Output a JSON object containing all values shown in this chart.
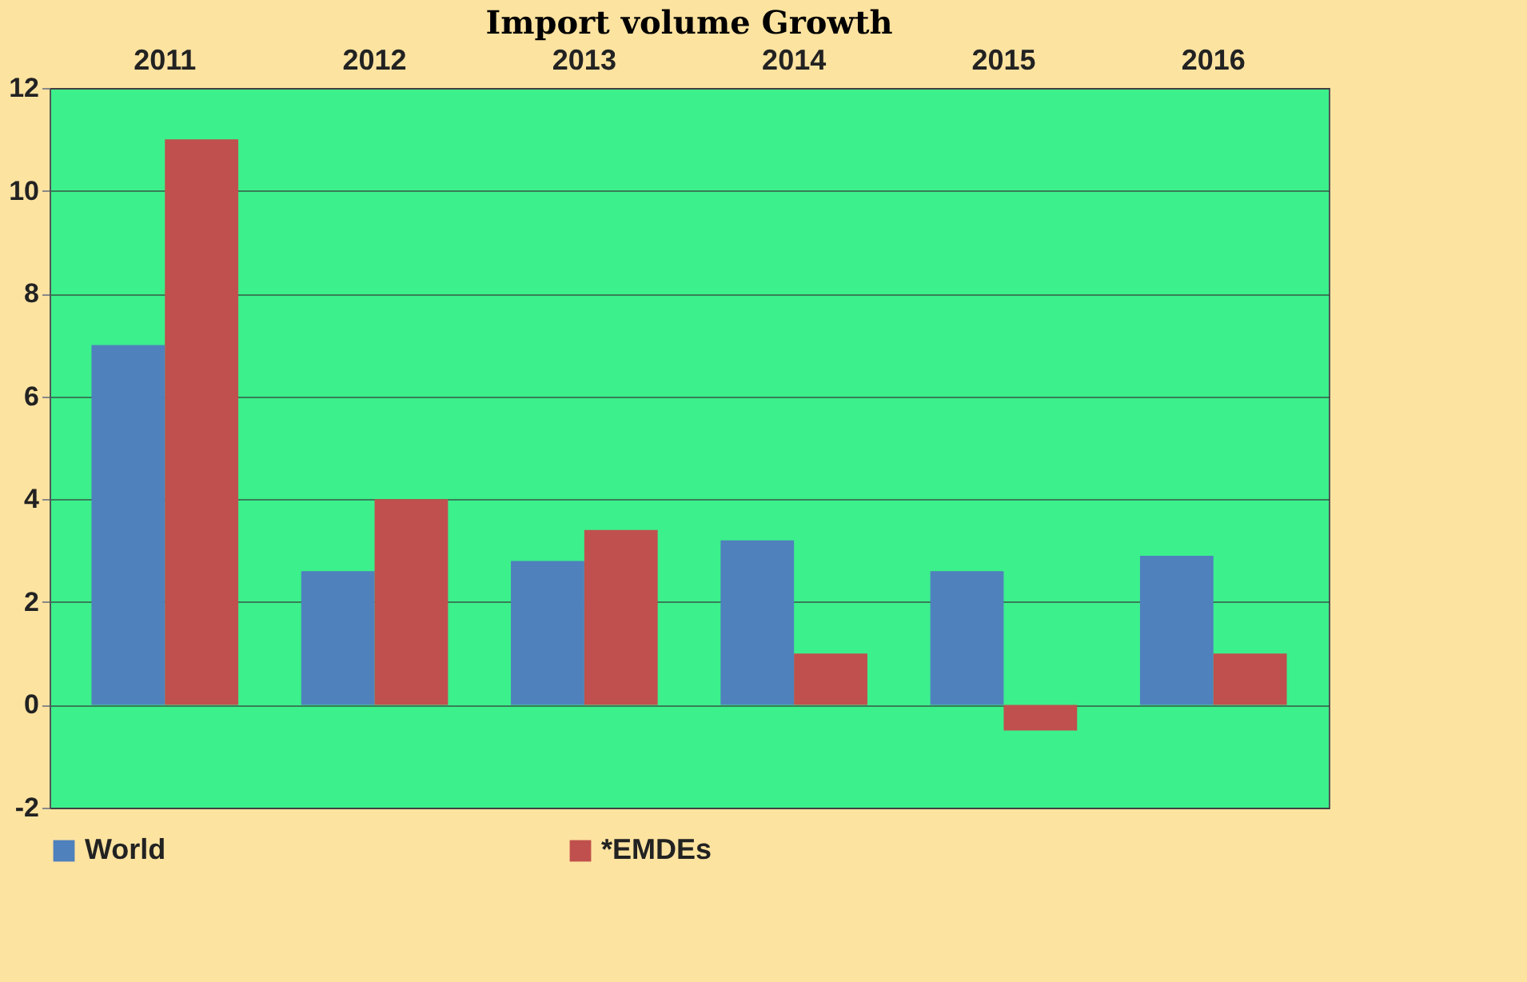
{
  "chart_data": {
    "type": "bar",
    "title": "Import volume Growth",
    "categories": [
      "2011",
      "2012",
      "2013",
      "2014",
      "2015",
      "2016"
    ],
    "series": [
      {
        "name": "World",
        "color": "#4f81bd",
        "values": [
          7.0,
          2.6,
          2.8,
          3.2,
          2.6,
          2.9
        ]
      },
      {
        "name": "*EMDEs",
        "color": "#c0504d",
        "values": [
          11.0,
          4.0,
          3.4,
          1.0,
          -0.5,
          1.0
        ]
      }
    ],
    "ylim": [
      -2,
      12
    ],
    "yticks": [
      -2,
      0,
      2,
      4,
      6,
      8,
      10,
      12
    ],
    "grid": "y",
    "legend": "bottom"
  }
}
